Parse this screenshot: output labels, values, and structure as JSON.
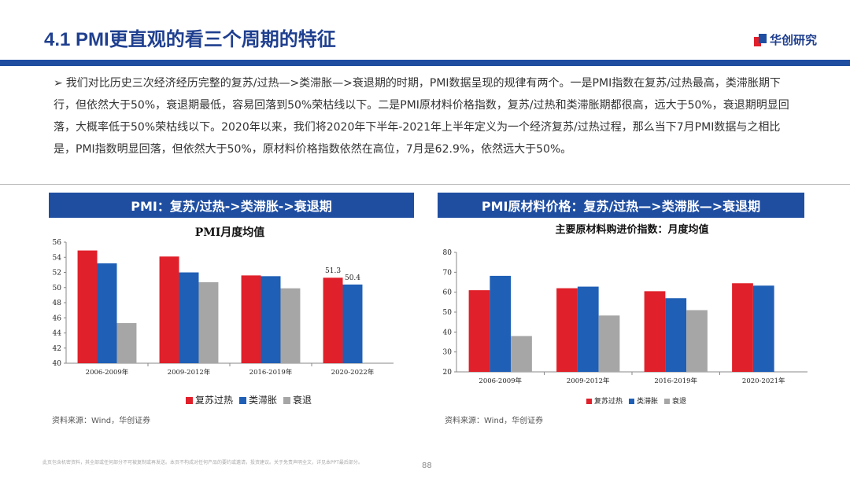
{
  "header": {
    "title": "4.1 PMI更直观的看三个周期的特征",
    "logo_text": "华创研究"
  },
  "summary": {
    "arrow": "➢",
    "text": "我们对比历史三次经济经历完整的复苏/过热—>类滞胀—>衰退期的时期，PMI数据呈现的规律有两个。一是PMI指数在复苏/过热最高，类滞胀期下行，但依然大于50%，衰退期最低，容易回落到50%荣枯线以下。二是PMI原材料价格指数，复苏/过热和类滞胀期都很高，远大于50%，衰退期明显回落，大概率低于50%荣枯线以下。2020年以来，我们将2020年下半年-2021年上半年定义为一个经济复苏/过热过程，那么当下7月PMI数据与之相比是，PMI指数明显回落，但依然大于50%，原材料价格指数依然在高位，7月是62.9%，依然远大于50%。"
  },
  "panels": {
    "left": {
      "header": "PMI：复苏/过热->类滞胀->衰退期",
      "source": "资料来源：Wind，华创证券"
    },
    "right": {
      "header": "PMI原材料价格：复苏/过热—>类滞胀—>衰退期",
      "source": "资料来源：Wind，华创证券"
    }
  },
  "colors": {
    "overheat": "#e0202a",
    "stagflation": "#1f5fb5",
    "recession": "#a6a6a6",
    "brand": "#1f4ea1"
  },
  "chart_data": [
    {
      "type": "bar",
      "title": "PMI月度均值",
      "categories": [
        "2006-2009年",
        "2009-2012年",
        "2016-2019年",
        "2020-2022年"
      ],
      "series": [
        {
          "name": "复苏过热",
          "values": [
            54.9,
            54.1,
            51.6,
            51.3
          ]
        },
        {
          "name": "类滞胀",
          "values": [
            53.2,
            52.0,
            51.5,
            50.4
          ]
        },
        {
          "name": "衰退",
          "values": [
            45.3,
            50.7,
            49.9,
            null
          ]
        }
      ],
      "data_labels": [
        "51.3",
        "50.4"
      ],
      "ylim": [
        40,
        56
      ],
      "yticks": [
        "40",
        "42",
        "44",
        "46",
        "48",
        "50",
        "52",
        "54",
        "56"
      ],
      "legend": "bottom"
    },
    {
      "type": "bar",
      "title": "主要原材料购进价指数：月度均值",
      "categories": [
        "2006-2009年",
        "2009-2012年",
        "2016-2019年",
        "2020-2021年"
      ],
      "series": [
        {
          "name": "复苏过热",
          "values": [
            61,
            62,
            60.5,
            64.5
          ]
        },
        {
          "name": "类滞胀",
          "values": [
            68.2,
            62.8,
            57,
            63.3
          ]
        },
        {
          "name": "衰退",
          "values": [
            38,
            48.3,
            51,
            null
          ]
        }
      ],
      "ylim": [
        20,
        80
      ],
      "yticks": [
        "20",
        "30",
        "40",
        "50",
        "60",
        "70",
        "80"
      ],
      "legend": "bottom"
    }
  ],
  "footer": {
    "disclaimer": "此页包含机密资料，其全部或任何部分不可被复制或再发送。本页不构成对任何产品的要约或邀请，投资建议。关于免责声明全文，详见本PPT最后部分。",
    "page": "88"
  }
}
